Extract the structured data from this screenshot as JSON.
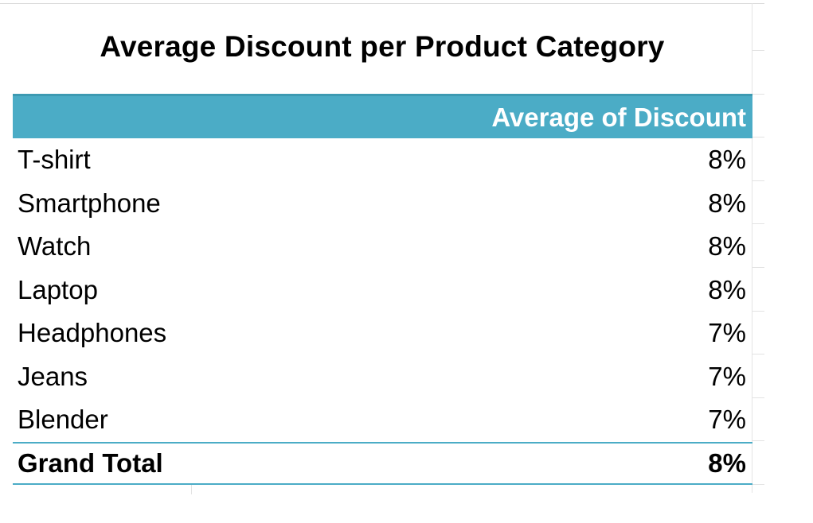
{
  "chart_data": {
    "type": "table",
    "title": "Average Discount per Product Category",
    "columns": [
      "",
      "Average of Discount"
    ],
    "rows": [
      {
        "category": "T-shirt",
        "value": "8%"
      },
      {
        "category": "Smartphone",
        "value": "8%"
      },
      {
        "category": "Watch",
        "value": "8%"
      },
      {
        "category": "Laptop",
        "value": "8%"
      },
      {
        "category": "Headphones",
        "value": "7%"
      },
      {
        "category": "Jeans",
        "value": "7%"
      },
      {
        "category": "Blender",
        "value": "7%"
      }
    ],
    "total": {
      "label": "Grand Total",
      "value": "8%"
    }
  },
  "colors": {
    "header_background": "#4bacc6",
    "header_text": "#ffffff",
    "border": "#4bacc6"
  }
}
